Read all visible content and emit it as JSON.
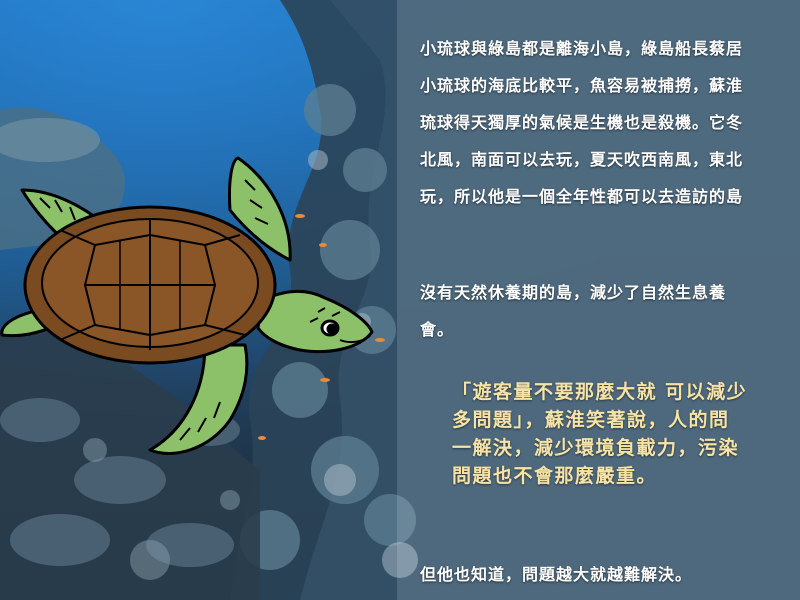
{
  "paragraph1": {
    "lines": [
      "小琉球與綠島都是離海小島，綠島船長蔡居",
      "小琉球的海底比較平，魚容易被捕撈，蘇淮",
      "琉球得天獨厚的氣候是生機也是殺機。它冬",
      "北風，南面可以去玩，夏天吹西南風，東北",
      "玩，所以他是一個全年性都可以去造訪的島"
    ]
  },
  "paragraph2": {
    "lines": [
      "沒有天然休養期的島，減少了自然生息養",
      "會。"
    ]
  },
  "quote": {
    "lines": [
      "「遊客量不要那麼大就 可以減少",
      "多問題」，蘇淮笑著說，人的問",
      "一解決，減少環境負載力，污染",
      "問題也不會那麼嚴重。"
    ]
  },
  "paragraph3": {
    "lines": [
      "但他也知道，問題越大就越難解決。"
    ]
  },
  "colors": {
    "body_text": "#ffffff",
    "quote_text": "#f7e3a6",
    "turtle_shell": "#7a4a20",
    "turtle_skin": "#8cc16a"
  },
  "illustration": {
    "subject": "sea-turtle",
    "background": "coral-reef-underwater"
  }
}
